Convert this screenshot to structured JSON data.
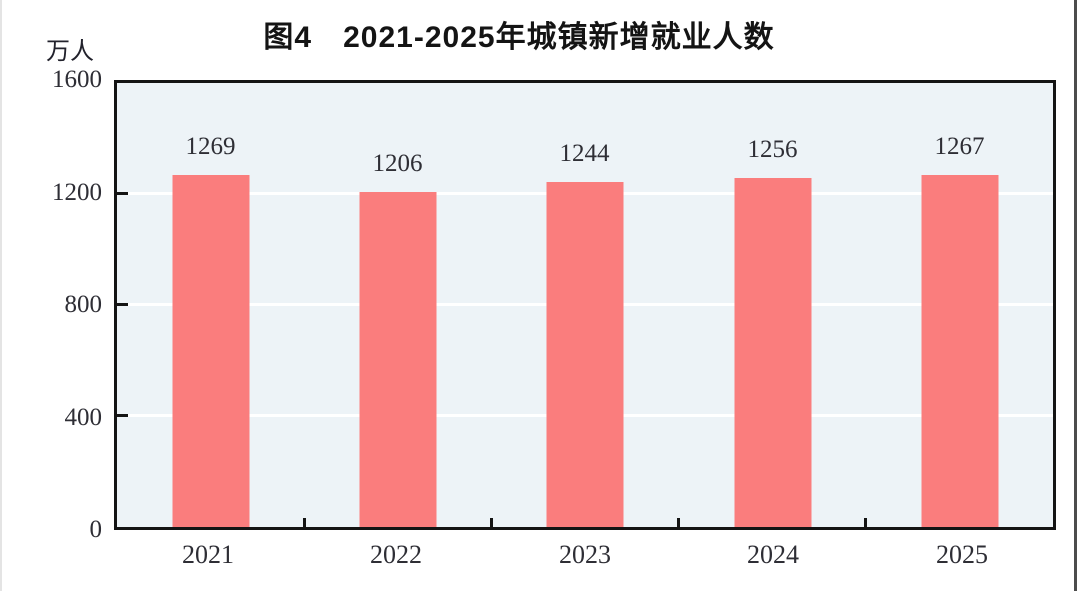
{
  "page": {
    "title": "图4　2021-2025年城镇新增就业人数",
    "unit_label": "万人"
  },
  "chart_data": {
    "type": "bar",
    "title": "图4　2021-2025年城镇新增就业人数",
    "ylabel": "万人",
    "xlabel": "",
    "categories": [
      "2021",
      "2022",
      "2023",
      "2024",
      "2025"
    ],
    "values": [
      1269,
      1206,
      1244,
      1256,
      1267
    ],
    "ylim": [
      0,
      1600
    ],
    "yticks": [
      0,
      400,
      800,
      1200,
      1600
    ],
    "grid": true,
    "legend": "none",
    "data_labels": true,
    "colors": {
      "bar": "#fa7d7d",
      "plot_background": "#edf3f7",
      "gridline": "#ffffff",
      "axis": "#141414",
      "text": "#2e2e35"
    }
  }
}
